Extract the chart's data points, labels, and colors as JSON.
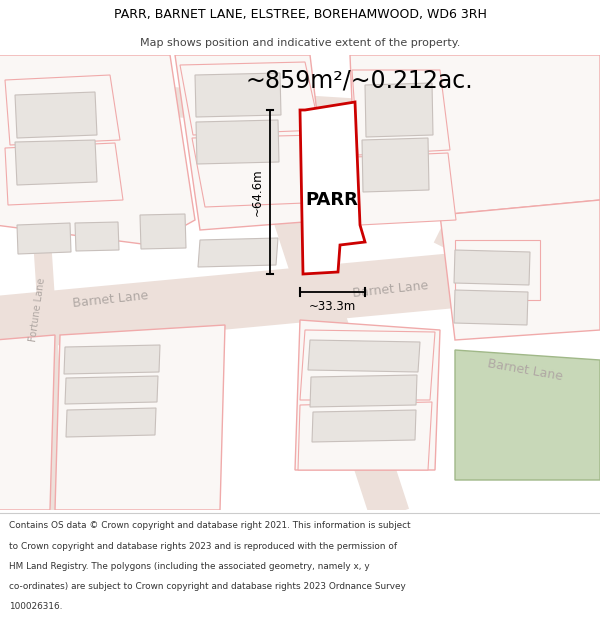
{
  "title_line1": "PARR, BARNET LANE, ELSTREE, BOREHAMWOOD, WD6 3RH",
  "title_line2": "Map shows position and indicative extent of the property.",
  "area_text": "~859m²/~0.212ac.",
  "label_text": "PARR",
  "dim_height": "~64.6m",
  "dim_width": "~33.3m",
  "footer_lines": [
    "Contains OS data © Crown copyright and database right 2021. This information is subject",
    "to Crown copyright and database rights 2023 and is reproduced with the permission of",
    "HM Land Registry. The polygons (including the associated geometry, namely x, y",
    "co-ordinates) are subject to Crown copyright and database rights 2023 Ordnance Survey",
    "100026316."
  ],
  "map_bg": "#f8f4f2",
  "parcel_edge": "#f0aaaa",
  "parcel_fill": "#ffffff",
  "building_fill": "#e8e4e0",
  "building_edge": "#d0c8c4",
  "road_fill": "#f0e8e4",
  "road_edge": "none",
  "plot_edge": "#dd0000",
  "plot_fill": "#ffffff",
  "green_fill": "#c8d8b8",
  "green_edge": "#a8c090",
  "dim_color": "#000000",
  "label_color": "#888888",
  "text_color": "#000000"
}
